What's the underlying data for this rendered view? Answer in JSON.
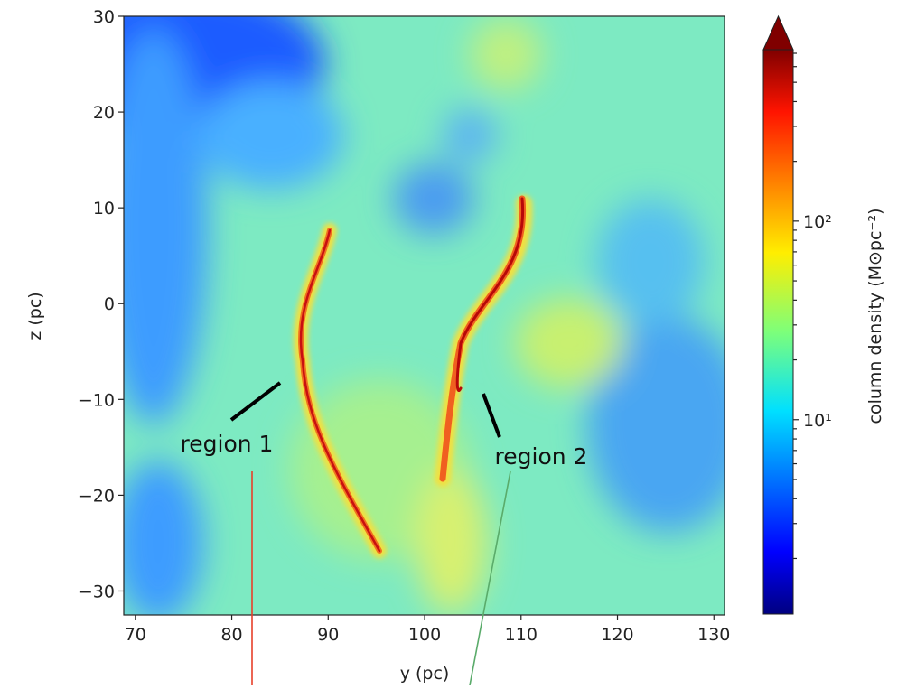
{
  "chart_data": {
    "type": "heatmap",
    "xlabel": "y (pc)",
    "ylabel": "z (pc)",
    "xlim": [
      68.8,
      131.1
    ],
    "ylim": [
      -32.5,
      30
    ],
    "xticks": [
      70,
      80,
      90,
      100,
      110,
      120,
      130
    ],
    "yticks": [
      {
        "value": -30,
        "label": "−30"
      },
      {
        "value": -20,
        "label": "−20"
      },
      {
        "value": -10,
        "label": "−10"
      },
      0,
      10,
      20,
      30
    ],
    "colormap": "jet",
    "colorbar": {
      "label": "column density (M⊙pc⁻²)",
      "scale": "log",
      "lim": [
        1.05,
        730
      ],
      "extend": "max",
      "ticks": [
        {
          "value": 10,
          "label": "10¹"
        },
        {
          "value": 100,
          "label": "10²"
        }
      ],
      "minor_ticks": [
        2,
        3,
        4,
        5,
        6,
        7,
        8,
        9,
        20,
        30,
        40,
        50,
        60,
        70,
        80,
        90,
        200,
        300,
        400,
        500,
        600,
        700
      ]
    },
    "annotations": [
      {
        "text": "region 1",
        "color": "#e8402a"
      },
      {
        "text": "region 2",
        "color": "#5aab6a"
      }
    ]
  }
}
